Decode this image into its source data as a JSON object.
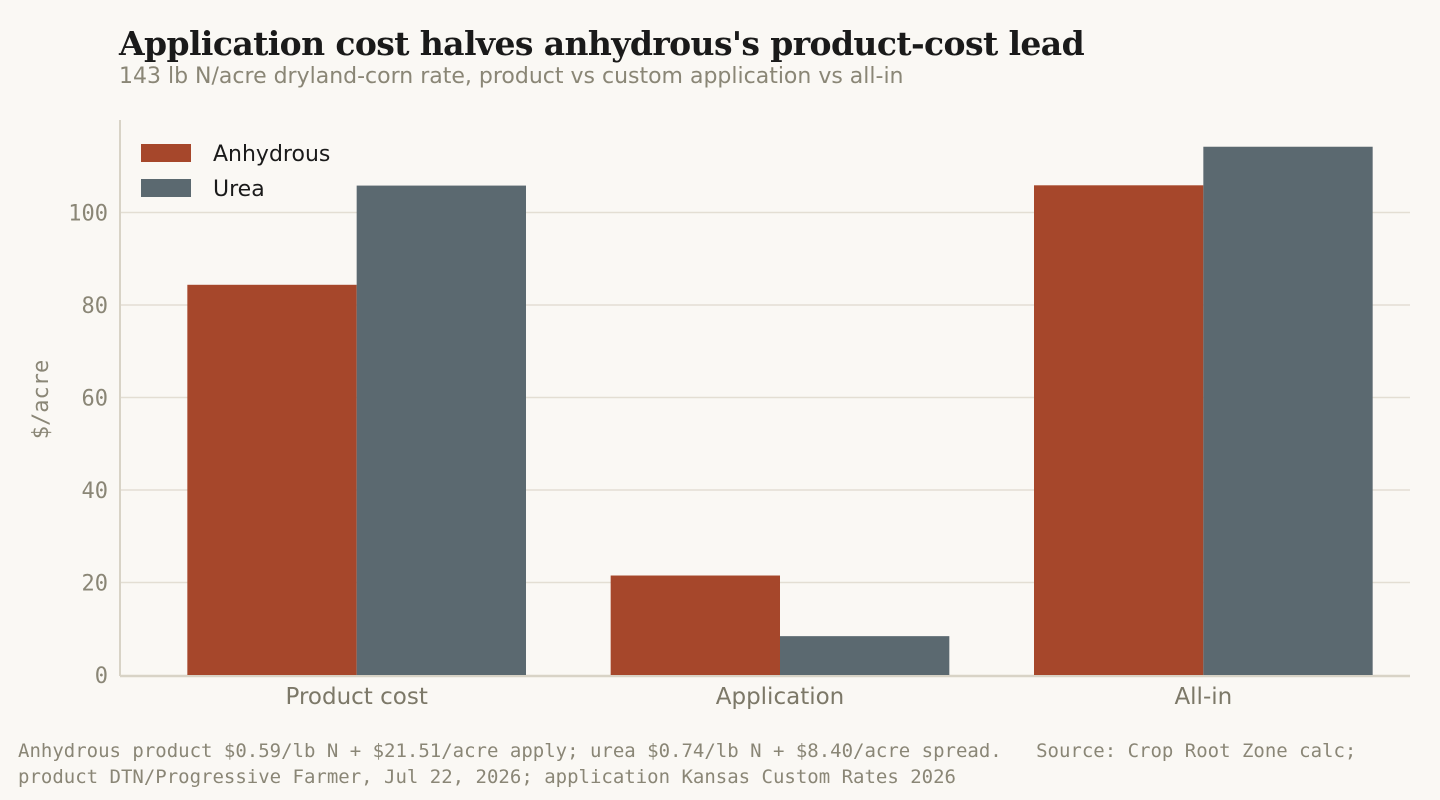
{
  "title": "Application cost halves anhydrous's product-cost lead",
  "subtitle": "143 lb N/acre dryland-corn rate, product vs custom application vs all-in",
  "footer": "Anhydrous product $0.59/lb N + $21.51/acre apply; urea $0.74/lb N + $8.40/acre spread.   Source: Crop Root Zone calc; product DTN/Progressive Farmer, Jul 22, 2026; application Kansas Custom Rates 2026",
  "colors": {
    "anhydrous": "#a6472b",
    "urea": "#5b6970",
    "grid": "#e3ded3",
    "axis": "#d8d3c6"
  },
  "chart_data": {
    "type": "bar",
    "title": "Application cost halves anhydrous's product-cost lead",
    "subtitle": "143 lb N/acre dryland-corn rate, product vs custom application vs all-in",
    "xlabel": "",
    "ylabel": "$/acre",
    "categories": [
      "Product cost",
      "Application",
      "All-in"
    ],
    "series": [
      {
        "name": "Anhydrous",
        "values": [
          84.37,
          21.51,
          105.88
        ]
      },
      {
        "name": "Urea",
        "values": [
          105.82,
          8.4,
          114.22
        ]
      }
    ],
    "ylim": [
      0,
      120
    ],
    "yticks": [
      0,
      20,
      40,
      60,
      80,
      100
    ],
    "ytick_labels": [
      "0",
      "20",
      "40",
      "60",
      "80",
      "100"
    ],
    "grid": "horizontal",
    "legend": "top-left"
  }
}
